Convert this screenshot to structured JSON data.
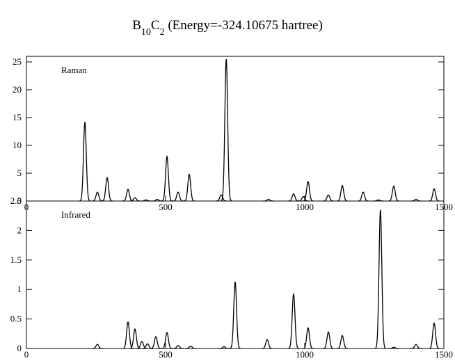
{
  "title": [
    {
      "text": "B"
    },
    {
      "text": "10",
      "sub": true
    },
    {
      "text": "C"
    },
    {
      "text": "2",
      "sub": true
    },
    {
      "text": "  (Energy=-324.10675 hartree)"
    }
  ],
  "chart_data": [
    {
      "type": "spectrum",
      "label": "Raman",
      "color": "#000000",
      "x": [
        210,
        255,
        290,
        365,
        390,
        430,
        470,
        505,
        545,
        585,
        700,
        718,
        870,
        960,
        995,
        1012,
        1085,
        1135,
        1210,
        1265,
        1320,
        1400,
        1465
      ],
      "values": [
        14.2,
        1.6,
        4.2,
        2.1,
        0.6,
        0.2,
        0.3,
        8,
        1.6,
        4.8,
        1.1,
        25.5,
        0.3,
        1.3,
        0.8,
        3.5,
        1.1,
        2.8,
        1.6,
        0.2,
        2.7,
        0.3,
        2.2
      ],
      "xlim": [
        0,
        1500
      ],
      "xticks": [
        0,
        500,
        1000,
        1500
      ],
      "ylim": [
        0,
        26
      ],
      "yticks": [
        0,
        5,
        10,
        15,
        20,
        25
      ]
    },
    {
      "type": "spectrum",
      "label": "Infrared",
      "color": "#000000",
      "x": [
        255,
        365,
        390,
        415,
        435,
        465,
        505,
        545,
        590,
        710,
        750,
        865,
        960,
        1012,
        1085,
        1135,
        1272,
        1320,
        1400,
        1465
      ],
      "values": [
        0.07,
        0.45,
        0.33,
        0.12,
        0.08,
        0.2,
        0.27,
        0.05,
        0.04,
        0.03,
        1.13,
        0.15,
        0.93,
        0.35,
        0.28,
        0.22,
        2.35,
        0.02,
        0.07,
        0.43
      ],
      "xlim": [
        0,
        1500
      ],
      "xticks": [
        0,
        500,
        1000,
        1500
      ],
      "ylim": [
        0,
        2.5
      ],
      "yticks": [
        0,
        0.5,
        1,
        1.5,
        2,
        2.5
      ]
    }
  ]
}
